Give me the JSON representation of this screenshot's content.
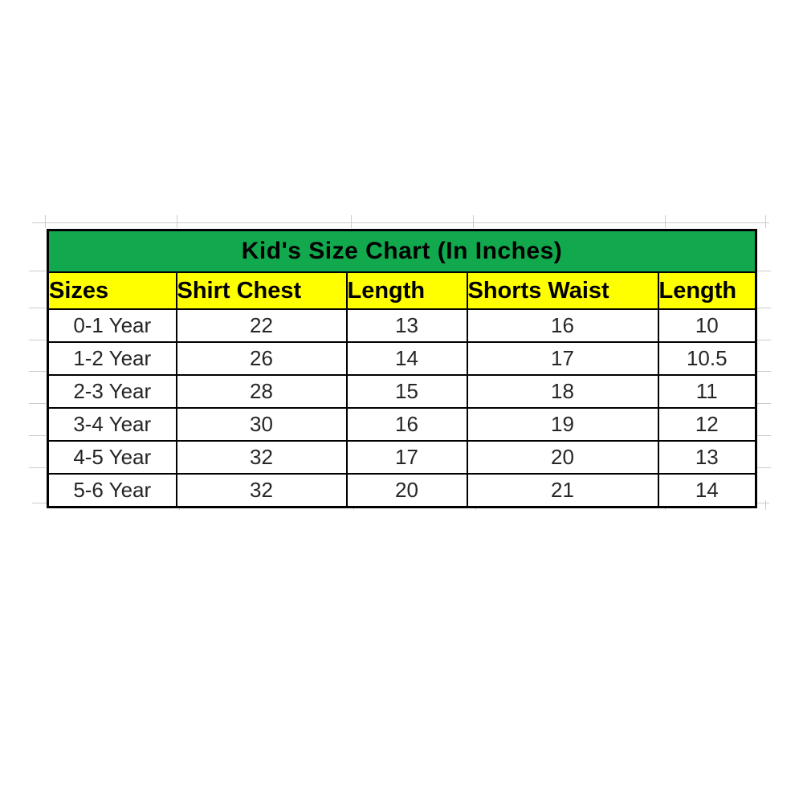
{
  "page": {
    "background": "#ffffff"
  },
  "colors": {
    "title_bg": "#12a84d",
    "header_bg": "#ffff00",
    "border": "#000000",
    "data_text": "#262626",
    "gridline": "#cccccc"
  },
  "chart_data": {
    "type": "table",
    "title": "Kid's Size Chart (In Inches)",
    "units": "inches",
    "columns": [
      "Sizes",
      "Shirt Chest",
      "Length",
      "Shorts Waist",
      "Length"
    ],
    "rows": [
      [
        "0-1 Year",
        "22",
        "13",
        "16",
        "10"
      ],
      [
        "1-2 Year",
        "26",
        "14",
        "17",
        "10.5"
      ],
      [
        "2-3 Year",
        "28",
        "15",
        "18",
        "11"
      ],
      [
        "3-4 Year",
        "30",
        "16",
        "19",
        "12"
      ],
      [
        "4-5 Year",
        "32",
        "17",
        "20",
        "13"
      ],
      [
        "5-6 Year",
        "32",
        "20",
        "21",
        "14"
      ]
    ]
  }
}
